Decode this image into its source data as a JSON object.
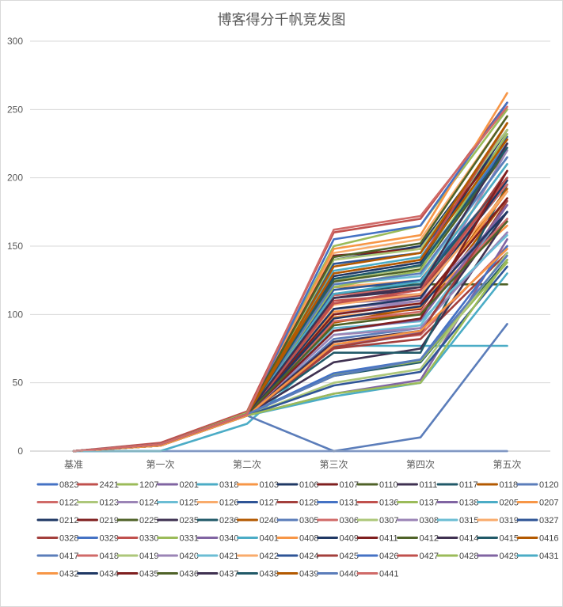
{
  "chart_data": {
    "type": "line",
    "title": "博客得分千帆竞发图",
    "xlabel": "",
    "ylabel": "",
    "categories": [
      "基准",
      "第一次",
      "第二次",
      "第三次",
      "第四次",
      "第五次"
    ],
    "ylim": [
      0,
      300
    ],
    "yticks": [
      0,
      50,
      100,
      150,
      200,
      250,
      300
    ],
    "grid": true,
    "legend_position": "bottom",
    "palette": [
      "#4472c4",
      "#c0504d",
      "#9bbb59",
      "#8064a2",
      "#4bacc6",
      "#f79646",
      "#1f3864",
      "#7f1f1f",
      "#4f6228",
      "#3f3151",
      "#215968",
      "#b35900",
      "#5b7dba",
      "#d06a68",
      "#adc77a",
      "#9b84b6",
      "#6bbdd4",
      "#f9ab6b",
      "#2e5496",
      "#a33f3c"
    ],
    "series": [
      {
        "name": "0823",
        "values": [
          0,
          0,
          0,
          0,
          0,
          0
        ]
      },
      {
        "name": "2421",
        "values": [
          0,
          6,
          29,
          160,
          170,
          255
        ]
      },
      {
        "name": "1207",
        "values": [
          0,
          5,
          28,
          150,
          165,
          250
        ]
      },
      {
        "name": "0201",
        "values": [
          0,
          5,
          27,
          108,
          112,
          200
        ]
      },
      {
        "name": "0318",
        "values": [
          0,
          0,
          20,
          77,
          77,
          77
        ]
      },
      {
        "name": "0103",
        "values": [
          0,
          5,
          27,
          148,
          158,
          262
        ]
      },
      {
        "name": "0106",
        "values": [
          0,
          5,
          27,
          140,
          150,
          235
        ]
      },
      {
        "name": "0107",
        "values": [
          0,
          4,
          26,
          98,
          104,
          190
        ]
      },
      {
        "name": "0110",
        "values": [
          0,
          5,
          27,
          120,
          122,
          122
        ]
      },
      {
        "name": "0111",
        "values": [
          0,
          5,
          27,
          112,
          118,
          195
        ]
      },
      {
        "name": "0117",
        "values": [
          0,
          5,
          27,
          55,
          65,
          140
        ]
      },
      {
        "name": "0118",
        "values": [
          0,
          5,
          27,
          95,
          100,
          185
        ]
      },
      {
        "name": "0120",
        "values": [
          0,
          5,
          26,
          82,
          90,
          160
        ]
      },
      {
        "name": "0122",
        "values": [
          0,
          4,
          26,
          78,
          85,
          150
        ]
      },
      {
        "name": "0123",
        "values": [
          0,
          5,
          27,
          125,
          135,
          240
        ]
      },
      {
        "name": "0124",
        "values": [
          0,
          5,
          27,
          104,
          110,
          175
        ]
      },
      {
        "name": "0125",
        "values": [
          0,
          5,
          27,
          122,
          128,
          215
        ]
      },
      {
        "name": "0126",
        "values": [
          0,
          5,
          27,
          145,
          155,
          245
        ]
      },
      {
        "name": "0127",
        "values": [
          0,
          5,
          27,
          137,
          145,
          230
        ]
      },
      {
        "name": "0128",
        "values": [
          0,
          4,
          26,
          75,
          82,
          145
        ]
      },
      {
        "name": "0131",
        "values": [
          0,
          5,
          27,
          155,
          165,
          255
        ]
      },
      {
        "name": "0136",
        "values": [
          0,
          5,
          27,
          110,
          115,
          200
        ]
      },
      {
        "name": "0137",
        "values": [
          0,
          5,
          27,
          56,
          66,
          138
        ]
      },
      {
        "name": "0138",
        "values": [
          0,
          4,
          26,
          78,
          87,
          180
        ]
      },
      {
        "name": "0205",
        "values": [
          0,
          5,
          27,
          132,
          142,
          225
        ]
      },
      {
        "name": "0207",
        "values": [
          0,
          5,
          27,
          102,
          108,
          165
        ]
      },
      {
        "name": "0212",
        "values": [
          0,
          5,
          27,
          128,
          138,
          235
        ]
      },
      {
        "name": "0219",
        "values": [
          0,
          5,
          27,
          143,
          148,
          228
        ]
      },
      {
        "name": "0225",
        "values": [
          0,
          5,
          27,
          124,
          133,
          220
        ]
      },
      {
        "name": "0235",
        "values": [
          0,
          5,
          27,
          65,
          75,
          170
        ]
      },
      {
        "name": "0236",
        "values": [
          0,
          5,
          27,
          72,
          72,
          195
        ]
      },
      {
        "name": "0240",
        "values": [
          0,
          4,
          26,
          94,
          105,
          192
        ]
      },
      {
        "name": "0305",
        "values": [
          0,
          4,
          26,
          0,
          10,
          93
        ]
      },
      {
        "name": "0306",
        "values": [
          0,
          5,
          27,
          114,
          120,
          195
        ]
      },
      {
        "name": "0307",
        "values": [
          0,
          5,
          27,
          140,
          148,
          235
        ]
      },
      {
        "name": "0308",
        "values": [
          0,
          5,
          27,
          100,
          110,
          220
        ]
      },
      {
        "name": "0315",
        "values": [
          0,
          5,
          27,
          85,
          92,
          175
        ]
      },
      {
        "name": "0319",
        "values": [
          0,
          5,
          27,
          120,
          125,
          210
        ]
      },
      {
        "name": "0327",
        "values": [
          0,
          5,
          27,
          118,
          125,
          200
        ]
      },
      {
        "name": "0328",
        "values": [
          0,
          5,
          27,
          108,
          114,
          205
        ]
      },
      {
        "name": "0329",
        "values": [
          0,
          5,
          27,
          126,
          136,
          225
        ]
      },
      {
        "name": "0330",
        "values": [
          0,
          5,
          27,
          130,
          140,
          240
        ]
      },
      {
        "name": "0331",
        "values": [
          0,
          5,
          27,
          120,
          132,
          232
        ]
      },
      {
        "name": "0340",
        "values": [
          0,
          4,
          26,
          42,
          52,
          155
        ]
      },
      {
        "name": "0401",
        "values": [
          0,
          4,
          26,
          40,
          50,
          130
        ]
      },
      {
        "name": "0408",
        "values": [
          0,
          5,
          27,
          98,
          105,
          190
        ]
      },
      {
        "name": "0409",
        "values": [
          0,
          5,
          27,
          104,
          112,
          198
        ]
      },
      {
        "name": "0411",
        "values": [
          0,
          5,
          27,
          100,
          108,
          185
        ]
      },
      {
        "name": "0412",
        "values": [
          0,
          5,
          27,
          142,
          152,
          245
        ]
      },
      {
        "name": "0414",
        "values": [
          0,
          5,
          27,
          80,
          88,
          175
        ]
      },
      {
        "name": "0415",
        "values": [
          0,
          5,
          27,
          115,
          122,
          200
        ]
      },
      {
        "name": "0416",
        "values": [
          0,
          5,
          27,
          135,
          145,
          240
        ]
      },
      {
        "name": "0417",
        "values": [
          0,
          5,
          27,
          122,
          130,
          215
        ]
      },
      {
        "name": "0418",
        "values": [
          0,
          5,
          27,
          95,
          102,
          170
        ]
      },
      {
        "name": "0419",
        "values": [
          0,
          4,
          26,
          50,
          60,
          145
        ]
      },
      {
        "name": "0420",
        "values": [
          0,
          5,
          27,
          85,
          90,
          160
        ]
      },
      {
        "name": "0421",
        "values": [
          0,
          5,
          27,
          90,
          95,
          158
        ]
      },
      {
        "name": "0422",
        "values": [
          0,
          5,
          27,
          107,
          115,
          190
        ]
      },
      {
        "name": "0424",
        "values": [
          0,
          4,
          26,
          48,
          58,
          135
        ]
      },
      {
        "name": "0425",
        "values": [
          0,
          4,
          26,
          76,
          86,
          183
        ]
      },
      {
        "name": "0426",
        "values": [
          0,
          5,
          27,
          57,
          67,
          150
        ]
      },
      {
        "name": "0427",
        "values": [
          0,
          4,
          26,
          108,
          118,
          200
        ]
      },
      {
        "name": "0428",
        "values": [
          0,
          4,
          26,
          42,
          50,
          140
        ]
      },
      {
        "name": "0429",
        "values": [
          0,
          5,
          27,
          88,
          96,
          180
        ]
      },
      {
        "name": "0431",
        "values": [
          0,
          5,
          27,
          115,
          124,
          210
        ]
      },
      {
        "name": "0432",
        "values": [
          0,
          4,
          26,
          78,
          88,
          148
        ]
      },
      {
        "name": "0434",
        "values": [
          0,
          5,
          27,
          97,
          106,
          175
        ]
      },
      {
        "name": "0435",
        "values": [
          0,
          5,
          27,
          88,
          97,
          205
        ]
      },
      {
        "name": "0436",
        "values": [
          0,
          5,
          27,
          92,
          100,
          168
        ]
      },
      {
        "name": "0437",
        "values": [
          0,
          5,
          27,
          112,
          120,
          225
        ]
      },
      {
        "name": "0438",
        "values": [
          0,
          5,
          27,
          126,
          136,
          222
        ]
      },
      {
        "name": "0439",
        "values": [
          0,
          5,
          27,
          130,
          140,
          228
        ]
      },
      {
        "name": "0440",
        "values": [
          0,
          5,
          27,
          55,
          67,
          143
        ]
      },
      {
        "name": "0441",
        "values": [
          0,
          5,
          27,
          162,
          172,
          252
        ]
      }
    ]
  }
}
